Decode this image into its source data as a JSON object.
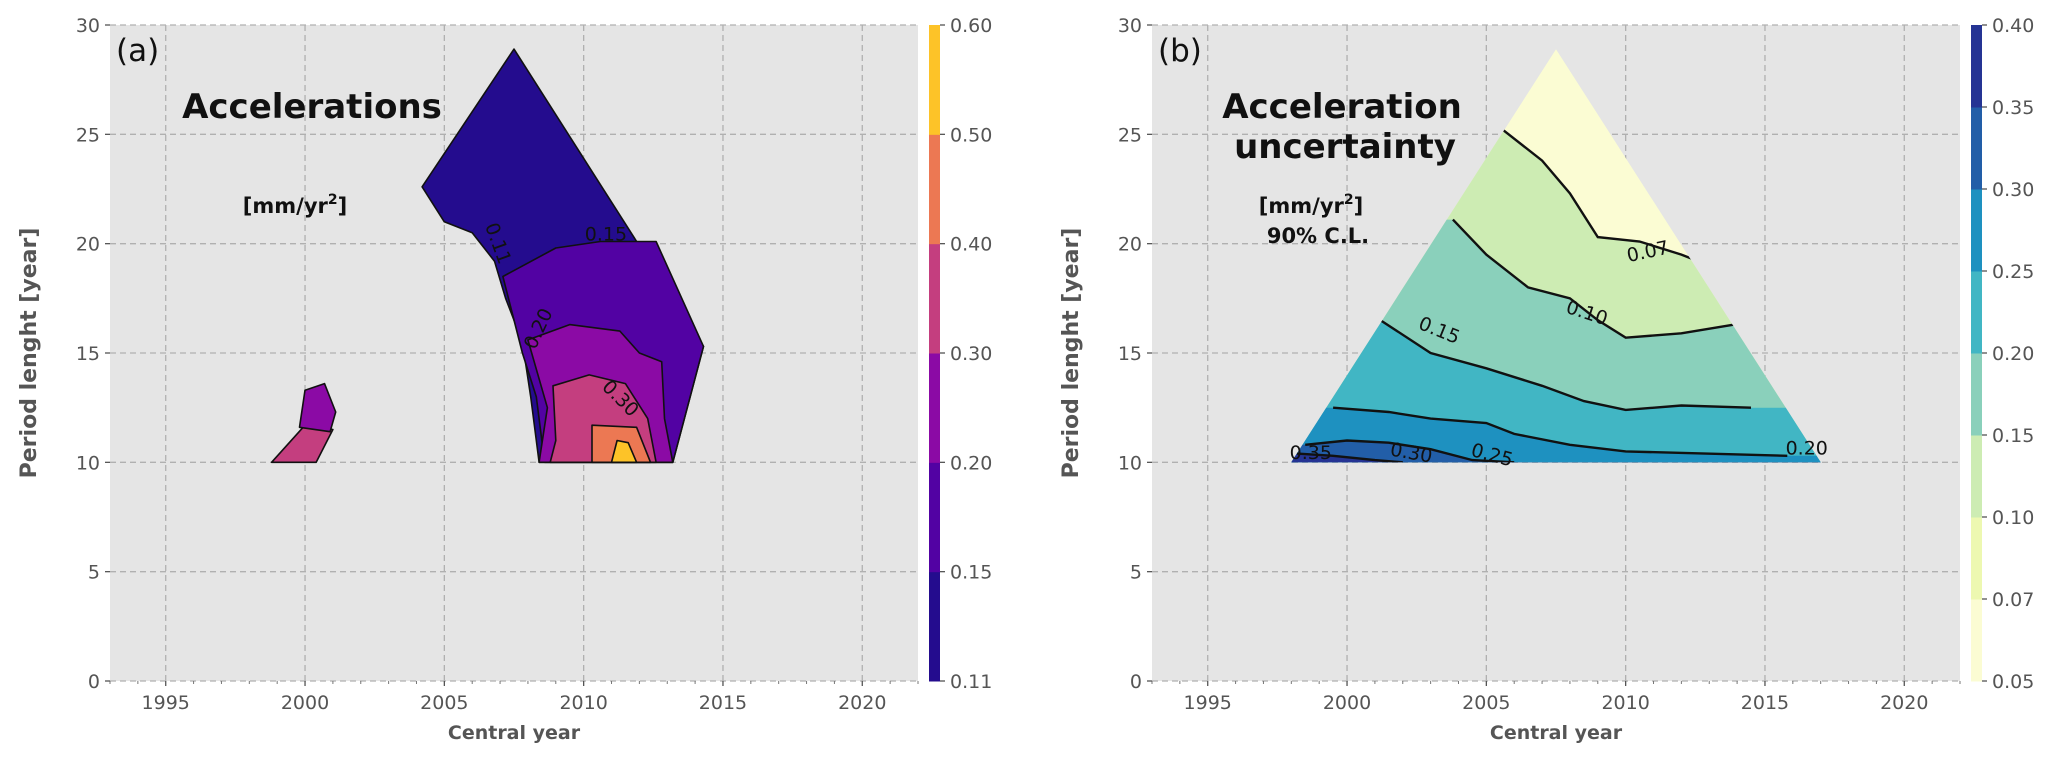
{
  "chart_data": [
    {
      "type": "contour",
      "panel_label": "(a)",
      "title": "Accelerations",
      "units_text": "[mm/yr",
      "units_sup": "2",
      "units_close": "]",
      "units_line2": "",
      "xlabel": "Central year",
      "ylabel": "Period lenght [year]",
      "xlim": [
        1993,
        2022
      ],
      "ylim": [
        0,
        30
      ],
      "x_ticks": [
        "1995",
        "2000",
        "2005",
        "2010",
        "2015",
        "2020"
      ],
      "x_tick_values": [
        1995,
        2000,
        2005,
        2010,
        2015,
        2020
      ],
      "y_ticks": [
        "0",
        "5",
        "10",
        "15",
        "20",
        "25",
        "30"
      ],
      "y_tick_values": [
        0,
        5,
        10,
        15,
        20,
        25,
        30
      ],
      "grid": true,
      "colorbar": {
        "levels": [
          "0.11",
          "0.15",
          "0.20",
          "0.30",
          "0.40",
          "0.50",
          "0.60"
        ],
        "colors": [
          "#240c8e",
          "#5202a3",
          "#8b0aa5",
          "#c43e7f",
          "#ec7853",
          "#fdc328"
        ]
      },
      "contour_labels": [
        "0.15",
        "0.11",
        "0.20",
        "0.30"
      ],
      "regions": [
        {
          "level": "0.11-0.15",
          "color": "#240c8e",
          "outline": [
            [
              2004.2,
              22.6
            ],
            [
              2007.5,
              28.9
            ],
            [
              2014.3,
              15.3
            ],
            [
              2013.2,
              10.0
            ],
            [
              2008.4,
              10.0
            ],
            [
              2008.1,
              13.0
            ],
            [
              2007.8,
              15.5
            ],
            [
              2007.2,
              17.5
            ],
            [
              2006.8,
              19.2
            ],
            [
              2006.0,
              20.5
            ],
            [
              2005.0,
              21.0
            ]
          ]
        },
        {
          "level": "0.15-0.20",
          "color": "#5202a3",
          "outline": [
            [
              2007.1,
              18.5
            ],
            [
              2009.0,
              19.8
            ],
            [
              2010.6,
              20.1
            ],
            [
              2012.6,
              20.1
            ],
            [
              2014.3,
              15.3
            ],
            [
              2013.2,
              10.0
            ],
            [
              2008.6,
              10.0
            ],
            [
              2008.3,
              13.0
            ],
            [
              2007.8,
              15.0
            ]
          ]
        },
        {
          "level": "0.20-0.30",
          "color": "#8b0aa5",
          "outline": [
            [
              2008.0,
              15.6
            ],
            [
              2009.5,
              16.3
            ],
            [
              2011.3,
              16.0
            ],
            [
              2012.0,
              15.0
            ],
            [
              2012.8,
              14.6
            ],
            [
              2012.9,
              12.0
            ],
            [
              2013.2,
              10.0
            ],
            [
              2008.4,
              10.0
            ],
            [
              2008.7,
              12.5
            ]
          ]
        },
        {
          "level": "0.30-0.40",
          "color": "#c43e7f",
          "outline": [
            [
              2008.9,
              13.5
            ],
            [
              2010.2,
              14.0
            ],
            [
              2011.5,
              13.6
            ],
            [
              2012.3,
              12.0
            ],
            [
              2012.6,
              10.0
            ],
            [
              2008.8,
              10.0
            ],
            [
              2009.0,
              11.0
            ]
          ]
        },
        {
          "level": "0.40-0.50",
          "color": "#ec7853",
          "outline": [
            [
              2010.3,
              11.7
            ],
            [
              2011.9,
              11.6
            ],
            [
              2012.4,
              10.0
            ],
            [
              2010.3,
              10.0
            ]
          ]
        },
        {
          "level": "0.50-0.60",
          "color": "#fdc328",
          "outline": [
            [
              2011.2,
              11.0
            ],
            [
              2011.6,
              10.9
            ],
            [
              2011.9,
              10.0
            ],
            [
              2011.0,
              10.0
            ]
          ]
        },
        {
          "level": "0.30-0.40",
          "color": "#c43e7f",
          "outline": [
            [
              1998.8,
              10.0
            ],
            [
              2000.0,
              11.7
            ],
            [
              2001.0,
              11.5
            ],
            [
              2000.4,
              10.0
            ]
          ]
        },
        {
          "level": "0.20-0.30",
          "color": "#8b0aa5",
          "outline": [
            [
              1999.8,
              11.6
            ],
            [
              2000.0,
              13.3
            ],
            [
              2000.7,
              13.6
            ],
            [
              2001.1,
              12.3
            ],
            [
              2000.9,
              11.4
            ]
          ]
        }
      ]
    },
    {
      "type": "contour",
      "panel_label": "(b)",
      "title": "Acceleration",
      "title_line2": "uncertainty",
      "units_text": "[mm/yr",
      "units_sup": "2",
      "units_close": "]",
      "units_line2": "90% C.L.",
      "xlabel": "Central year",
      "ylabel": "Period lenght [year]",
      "xlim": [
        1993,
        2022
      ],
      "ylim": [
        0,
        30
      ],
      "x_ticks": [
        "1995",
        "2000",
        "2005",
        "2010",
        "2015",
        "2020"
      ],
      "x_tick_values": [
        1995,
        2000,
        2005,
        2010,
        2015,
        2020
      ],
      "y_ticks": [
        "0",
        "5",
        "10",
        "15",
        "20",
        "25",
        "30"
      ],
      "y_tick_values": [
        0,
        5,
        10,
        15,
        20,
        25,
        30
      ],
      "grid": true,
      "colorbar": {
        "levels": [
          "0.05",
          "0.07",
          "0.10",
          "0.15",
          "0.20",
          "0.25",
          "0.30",
          "0.35",
          "0.40"
        ],
        "colors": [
          "#fbfcd3",
          "#edf8b1",
          "#cdecb3",
          "#8ad0bb",
          "#41b6c4",
          "#1e91c0",
          "#225ea8",
          "#253494"
        ]
      },
      "contour_labels": [
        "0.07",
        "0.10",
        "0.15",
        "0.20",
        "0.25",
        "0.30",
        "0.35"
      ],
      "triangle": [
        [
          1998,
          10
        ],
        [
          2007.5,
          28.9
        ],
        [
          2017,
          10
        ]
      ],
      "bands": [
        {
          "color": "#fbfcd3",
          "upper": null
        },
        {
          "color": "#cdecb3",
          "upper": [
            [
              2005.5,
              25.3
            ],
            [
              2007.0,
              23.8
            ],
            [
              2008.0,
              22.3
            ],
            [
              2009.0,
              20.3
            ],
            [
              2010.5,
              20.1
            ],
            [
              2012.0,
              19.5
            ],
            [
              2013.0,
              19.0
            ]
          ]
        },
        {
          "color": "#8ad0bb",
          "upper": [
            [
              2003.8,
              21.1
            ],
            [
              2005.0,
              19.5
            ],
            [
              2006.5,
              18.0
            ],
            [
              2008.0,
              17.5
            ],
            [
              2009.0,
              16.5
            ],
            [
              2010.0,
              15.7
            ],
            [
              2012.0,
              15.9
            ],
            [
              2013.9,
              16.3
            ]
          ]
        },
        {
          "color": "#41b6c4",
          "upper": [
            [
              2001.2,
              16.5
            ],
            [
              2003.0,
              15.0
            ],
            [
              2005.0,
              14.3
            ],
            [
              2007.0,
              13.5
            ],
            [
              2008.5,
              12.8
            ],
            [
              2010.0,
              12.4
            ],
            [
              2012.0,
              12.6
            ],
            [
              2014.5,
              12.5
            ]
          ]
        },
        {
          "color": "#1e91c0",
          "upper": [
            [
              1999.5,
              12.5
            ],
            [
              2001.5,
              12.3
            ],
            [
              2003.0,
              12.0
            ],
            [
              2005.0,
              11.8
            ],
            [
              2006.0,
              11.3
            ],
            [
              2008.0,
              10.8
            ],
            [
              2010.0,
              10.5
            ],
            [
              2015.8,
              10.3
            ]
          ]
        },
        {
          "color": "#225ea8",
          "upper": [
            [
              1998.5,
              10.8
            ],
            [
              2000.0,
              11.0
            ],
            [
              2001.5,
              10.9
            ],
            [
              2003.0,
              10.6
            ],
            [
              2004.5,
              10.1
            ],
            [
              2006.0,
              10.0
            ]
          ]
        },
        {
          "color": "#253494",
          "upper": [
            [
              1998.2,
              10.4
            ],
            [
              1999.5,
              10.3
            ],
            [
              2001.0,
              10.1
            ],
            [
              2002.0,
              10.0
            ]
          ]
        }
      ]
    }
  ]
}
